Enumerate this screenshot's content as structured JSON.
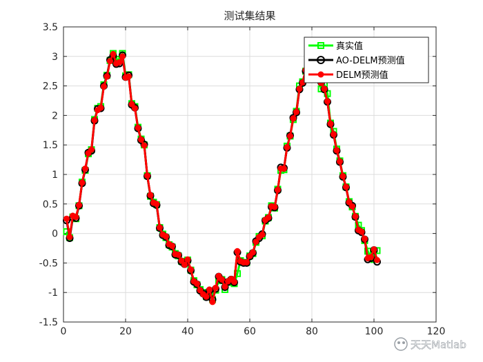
{
  "chart_data": {
    "type": "line",
    "title": "测试集结果",
    "xlabel": "",
    "ylabel": "",
    "xlim": [
      0,
      120
    ],
    "ylim": [
      -1.5,
      3.5
    ],
    "xticks": [
      0,
      20,
      40,
      60,
      80,
      100,
      120
    ],
    "yticks": [
      -1.5,
      -1,
      -0.5,
      0,
      0.5,
      1,
      1.5,
      2,
      2.5,
      3,
      3.5
    ],
    "grid": true,
    "legend_position": "top-right",
    "x": [
      1,
      2,
      3,
      4,
      5,
      6,
      7,
      8,
      9,
      10,
      11,
      12,
      13,
      14,
      15,
      16,
      17,
      18,
      19,
      20,
      21,
      22,
      23,
      24,
      25,
      26,
      27,
      28,
      29,
      30,
      31,
      32,
      33,
      34,
      35,
      36,
      37,
      38,
      39,
      40,
      41,
      42,
      43,
      44,
      45,
      46,
      47,
      48,
      49,
      50,
      51,
      52,
      53,
      54,
      55,
      56,
      57,
      58,
      59,
      60,
      61,
      62,
      63,
      64,
      65,
      66,
      67,
      68,
      69,
      70,
      71,
      72,
      73,
      74,
      75,
      76,
      77,
      78,
      79,
      80,
      81,
      82,
      83,
      84,
      85,
      86,
      87,
      88,
      89,
      90,
      91,
      92,
      93,
      94,
      95,
      96,
      97,
      98,
      99,
      100,
      101
    ],
    "series": [
      {
        "name": "真实值",
        "color": "#00ff00",
        "marker": "square",
        "values": [
          0.03,
          -0.07,
          0.28,
          0.25,
          0.47,
          0.87,
          1.07,
          1.35,
          1.42,
          1.93,
          2.12,
          2.15,
          2.52,
          2.68,
          2.93,
          3.05,
          2.95,
          2.95,
          3.05,
          2.67,
          2.69,
          2.2,
          2.15,
          1.8,
          1.6,
          1.5,
          0.98,
          0.63,
          0.53,
          0.49,
          0.1,
          -0.01,
          -0.07,
          -0.19,
          -0.23,
          -0.34,
          -0.38,
          -0.47,
          -0.5,
          -0.45,
          -0.62,
          -0.8,
          -0.87,
          -0.95,
          -1.0,
          -1.07,
          -1.0,
          -1.12,
          -0.96,
          -0.8,
          -0.78,
          -0.95,
          -0.83,
          -0.8,
          -0.85,
          -0.68,
          -0.46,
          -0.49,
          -0.49,
          -0.38,
          -0.34,
          -0.15,
          -0.05,
          -0.04,
          0.21,
          0.27,
          0.47,
          0.43,
          0.75,
          1.07,
          1.08,
          1.48,
          1.65,
          1.93,
          2.07,
          2.5,
          2.57,
          2.75,
          2.81,
          2.87,
          2.75,
          2.64,
          2.45,
          2.52,
          2.37,
          1.87,
          1.73,
          1.43,
          1.23,
          0.98,
          0.79,
          0.54,
          0.45,
          0.29,
          0.14,
          0.05,
          -0.12,
          -0.3,
          -0.41,
          -0.44,
          -0.29
        ]
      },
      {
        "name": "AO-DELM预测值",
        "color": "#000000",
        "marker": "circle",
        "values": [
          0.22,
          -0.08,
          0.27,
          0.26,
          0.47,
          0.85,
          1.08,
          1.37,
          1.4,
          1.91,
          2.11,
          2.12,
          2.5,
          2.67,
          2.94,
          3.01,
          2.87,
          2.88,
          3.02,
          2.65,
          2.68,
          2.18,
          2.13,
          1.78,
          1.58,
          1.51,
          0.97,
          0.64,
          0.51,
          0.48,
          0.09,
          -0.03,
          -0.06,
          -0.2,
          -0.22,
          -0.36,
          -0.37,
          -0.48,
          -0.52,
          -0.46,
          -0.63,
          -0.82,
          -0.86,
          -0.97,
          -1.02,
          -1.08,
          -0.97,
          -1.12,
          -0.94,
          -0.73,
          -0.79,
          -0.91,
          -0.82,
          -0.78,
          -0.83,
          -0.32,
          -0.48,
          -0.5,
          -0.5,
          -0.39,
          -0.33,
          -0.13,
          -0.08,
          -0.01,
          0.22,
          0.26,
          0.45,
          0.44,
          0.73,
          1.12,
          1.11,
          1.45,
          1.66,
          1.96,
          2.05,
          2.44,
          2.55,
          2.75,
          2.87,
          2.92,
          2.67,
          2.62,
          2.56,
          2.44,
          2.23,
          1.85,
          1.67,
          1.4,
          1.21,
          0.96,
          0.78,
          0.52,
          0.47,
          0.28,
          0.05,
          0.02,
          -0.1,
          -0.44,
          -0.42,
          -0.28,
          -0.48
        ]
      },
      {
        "name": "DELM预测值",
        "color": "#ff0000",
        "marker": "circle",
        "values": [
          0.25,
          -0.06,
          0.3,
          0.28,
          0.48,
          0.86,
          1.1,
          1.36,
          1.42,
          1.92,
          2.09,
          2.13,
          2.49,
          2.66,
          2.92,
          3.04,
          2.88,
          2.9,
          3.0,
          2.64,
          2.66,
          2.19,
          2.12,
          1.79,
          1.59,
          1.49,
          0.98,
          0.65,
          0.52,
          0.5,
          0.1,
          -0.02,
          -0.05,
          -0.18,
          -0.21,
          -0.35,
          -0.36,
          -0.46,
          -0.53,
          -0.44,
          -0.61,
          -0.81,
          -0.85,
          -0.96,
          -1.03,
          -1.07,
          -0.95,
          -1.16,
          -0.92,
          -0.72,
          -0.78,
          -0.9,
          -0.81,
          -0.77,
          -0.82,
          -0.3,
          -0.47,
          -0.49,
          -0.49,
          -0.38,
          -0.32,
          -0.14,
          -0.06,
          -0.02,
          0.23,
          0.27,
          0.46,
          0.45,
          0.74,
          1.1,
          1.1,
          1.46,
          1.65,
          1.95,
          2.06,
          2.45,
          2.56,
          2.77,
          2.85,
          2.9,
          2.68,
          2.63,
          2.55,
          2.45,
          2.24,
          1.86,
          1.68,
          1.41,
          1.22,
          0.97,
          0.79,
          0.53,
          0.46,
          0.29,
          0.06,
          0.03,
          -0.09,
          -0.42,
          -0.4,
          -0.27,
          -0.45
        ]
      }
    ]
  },
  "watermark": "天天Matlab"
}
